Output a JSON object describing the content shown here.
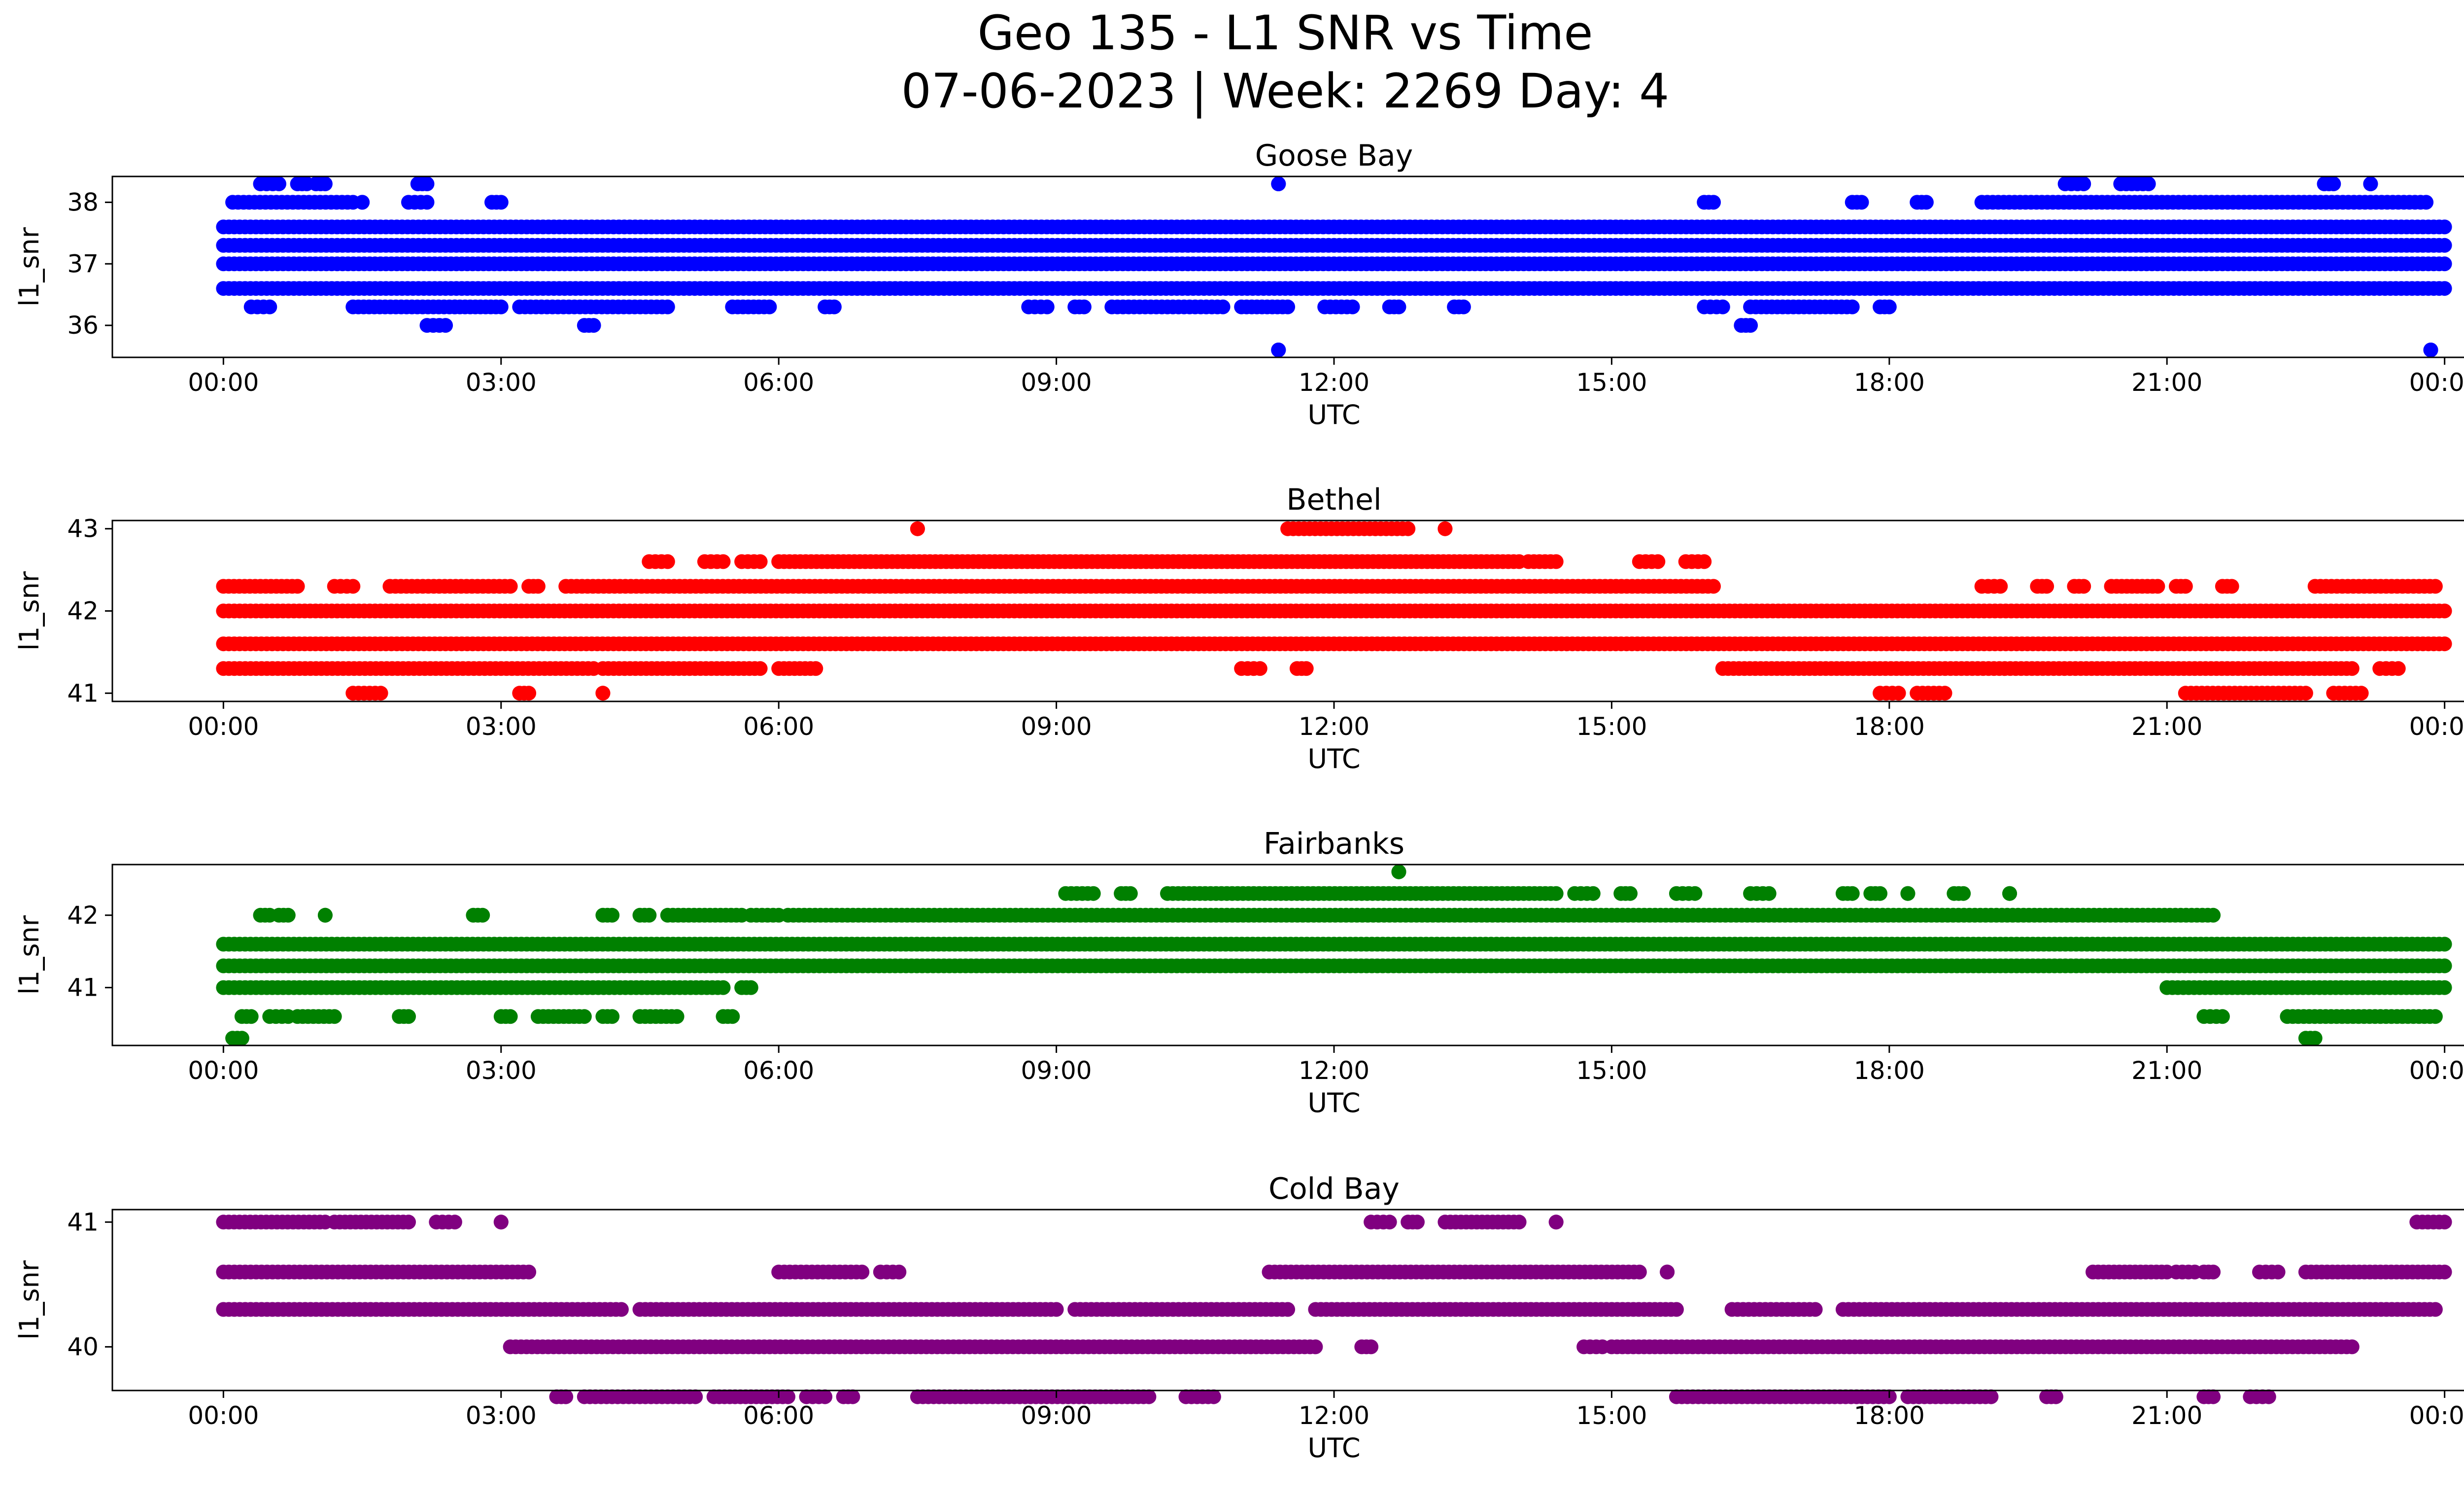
{
  "chart_data": {
    "type": "scatter",
    "title_line1": "Geo 135 - L1 SNR vs Time",
    "title_line2": "07-06-2023 | Week: 2269 Day: 4",
    "x_tick_labels": [
      "00:00",
      "03:00",
      "06:00",
      "09:00",
      "12:00",
      "15:00",
      "18:00",
      "21:00",
      "00:00"
    ],
    "x_tick_hours": [
      0,
      3,
      6,
      9,
      12,
      15,
      18,
      21,
      24
    ],
    "xlim_hours": [
      -1.2,
      25.2
    ],
    "panels": [
      {
        "title": "Goose Bay",
        "color": "#0000ff",
        "xlabel": "UTC",
        "ylabel": "l1_snr",
        "ylim": [
          35.48,
          38.42
        ],
        "yticks": [
          36,
          37,
          38
        ],
        "dense_levels": [
          36.6,
          37.0,
          37.3,
          37.6
        ],
        "bands": [
          {
            "y": 36.3,
            "ranges": [
              [
                0.3,
                0.5
              ],
              [
                1.4,
                2.5
              ],
              [
                2.5,
                3.0
              ],
              [
                3.2,
                4.8
              ],
              [
                5.5,
                5.9
              ],
              [
                6.5,
                6.6
              ],
              [
                8.7,
                8.9
              ],
              [
                9.2,
                9.3
              ],
              [
                9.6,
                10.8
              ],
              [
                11.0,
                11.5
              ],
              [
                11.9,
                12.2
              ],
              [
                12.6,
                12.7
              ],
              [
                13.3,
                13.4
              ],
              [
                16.0,
                16.2
              ],
              [
                16.5,
                17.6
              ],
              [
                17.9,
                18.0
              ]
            ]
          },
          {
            "y": 36.0,
            "ranges": [
              [
                2.2,
                2.4
              ],
              [
                3.9,
                4.0
              ],
              [
                16.4,
                16.5
              ]
            ]
          },
          {
            "y": 35.6,
            "ranges": [
              [
                11.4,
                11.4
              ],
              [
                23.85,
                23.85
              ]
            ]
          },
          {
            "y": 38.0,
            "ranges": [
              [
                0.1,
                1.4
              ],
              [
                1.5,
                1.5
              ],
              [
                2.0,
                2.2
              ],
              [
                2.9,
                3.0
              ],
              [
                16.0,
                16.1
              ],
              [
                17.6,
                17.7
              ],
              [
                18.3,
                18.4
              ],
              [
                19.0,
                22.6
              ],
              [
                22.6,
                23.8
              ]
            ]
          },
          {
            "y": 38.3,
            "ranges": [
              [
                0.4,
                0.6
              ],
              [
                0.8,
                0.9
              ],
              [
                1.0,
                1.1
              ],
              [
                2.1,
                2.2
              ],
              [
                11.4,
                11.4
              ],
              [
                19.9,
                20.1
              ],
              [
                20.5,
                20.8
              ],
              [
                22.7,
                22.8
              ],
              [
                23.2,
                23.2
              ]
            ]
          }
        ]
      },
      {
        "title": "Bethel",
        "color": "#ff0000",
        "xlabel": "UTC",
        "ylabel": "l1_snr",
        "ylim": [
          40.9,
          43.1
        ],
        "yticks": [
          41,
          42,
          43
        ],
        "dense_levels": [
          41.6,
          42.0
        ],
        "bands": [
          {
            "y": 42.3,
            "ranges": [
              [
                0.0,
                0.8
              ],
              [
                1.2,
                1.4
              ],
              [
                1.8,
                3.1
              ],
              [
                3.3,
                3.4
              ],
              [
                3.7,
                16.1
              ],
              [
                19.0,
                19.2
              ],
              [
                19.6,
                19.7
              ],
              [
                20.0,
                20.1
              ],
              [
                20.4,
                20.9
              ],
              [
                21.1,
                21.2
              ],
              [
                21.6,
                21.7
              ],
              [
                22.6,
                23.9
              ]
            ]
          },
          {
            "y": 41.3,
            "ranges": [
              [
                0.0,
                4.0
              ],
              [
                4.1,
                5.8
              ],
              [
                6.0,
                6.4
              ],
              [
                11.0,
                11.2
              ],
              [
                11.6,
                11.7
              ],
              [
                16.2,
                23.0
              ],
              [
                23.3,
                23.5
              ]
            ]
          },
          {
            "y": 42.6,
            "ranges": [
              [
                4.6,
                4.8
              ],
              [
                5.2,
                5.4
              ],
              [
                5.6,
                5.8
              ],
              [
                6.0,
                14.0
              ],
              [
                14.1,
                14.4
              ],
              [
                15.3,
                15.5
              ],
              [
                15.8,
                16.0
              ]
            ]
          },
          {
            "y": 41.0,
            "ranges": [
              [
                1.4,
                1.7
              ],
              [
                3.2,
                3.3
              ],
              [
                4.1,
                4.1
              ],
              [
                17.9,
                18.1
              ],
              [
                18.3,
                18.6
              ],
              [
                21.2,
                22.5
              ],
              [
                22.8,
                23.1
              ]
            ]
          },
          {
            "y": 43.0,
            "ranges": [
              [
                7.5,
                7.5
              ],
              [
                11.5,
                12.8
              ],
              [
                13.2,
                13.2
              ]
            ]
          }
        ]
      },
      {
        "title": "Fairbanks",
        "color": "#008000",
        "xlabel": "UTC",
        "ylabel": "l1_snr",
        "ylim": [
          40.2,
          42.7
        ],
        "yticks": [
          41,
          42
        ],
        "dense_levels": [
          41.3,
          41.6
        ],
        "bands": [
          {
            "y": 42.0,
            "ranges": [
              [
                0.4,
                0.5
              ],
              [
                0.6,
                0.7
              ],
              [
                1.1,
                1.1
              ],
              [
                2.7,
                2.8
              ],
              [
                4.1,
                4.2
              ],
              [
                4.5,
                4.6
              ],
              [
                4.8,
                5.6
              ],
              [
                5.7,
                6.0
              ],
              [
                6.1,
                21.5
              ]
            ]
          },
          {
            "y": 41.0,
            "ranges": [
              [
                0.0,
                5.4
              ],
              [
                5.6,
                5.7
              ],
              [
                21.0,
                24.0
              ]
            ]
          },
          {
            "y": 40.6,
            "ranges": [
              [
                0.2,
                0.3
              ],
              [
                0.5,
                0.7
              ],
              [
                0.8,
                1.2
              ],
              [
                1.9,
                2.0
              ],
              [
                3.0,
                3.1
              ],
              [
                3.4,
                3.9
              ],
              [
                4.1,
                4.2
              ],
              [
                4.5,
                4.9
              ],
              [
                5.4,
                5.5
              ],
              [
                21.4,
                21.6
              ],
              [
                22.3,
                23.9
              ]
            ]
          },
          {
            "y": 42.3,
            "ranges": [
              [
                9.1,
                9.4
              ],
              [
                9.7,
                9.8
              ],
              [
                10.2,
                14.4
              ],
              [
                14.6,
                14.8
              ],
              [
                15.1,
                15.2
              ],
              [
                15.7,
                15.9
              ],
              [
                16.5,
                16.7
              ],
              [
                17.5,
                17.6
              ],
              [
                17.8,
                17.9
              ],
              [
                18.2,
                18.2
              ],
              [
                18.7,
                18.8
              ],
              [
                19.3,
                19.3
              ]
            ]
          },
          {
            "y": 40.3,
            "ranges": [
              [
                0.1,
                0.2
              ],
              [
                22.5,
                22.6
              ]
            ]
          },
          {
            "y": 42.6,
            "ranges": [
              [
                12.7,
                12.7
              ]
            ]
          }
        ]
      },
      {
        "title": "Cold Bay",
        "color": "#800080",
        "xlabel": "UTC",
        "ylabel": "l1_snr",
        "ylim": [
          39.65,
          41.1
        ],
        "yticks": [
          40,
          41
        ],
        "dense_levels": [],
        "bands": [
          {
            "y": 40.3,
            "ranges": [
              [
                0.0,
                4.3
              ],
              [
                4.5,
                9.0
              ],
              [
                9.2,
                11.5
              ],
              [
                11.8,
                15.7
              ],
              [
                16.3,
                17.2
              ],
              [
                17.5,
                23.9
              ]
            ]
          },
          {
            "y": 40.6,
            "ranges": [
              [
                0.0,
                3.3
              ],
              [
                6.0,
                6.9
              ],
              [
                7.1,
                7.3
              ],
              [
                11.3,
                15.3
              ],
              [
                15.6,
                15.6
              ],
              [
                20.2,
                21.0
              ],
              [
                21.1,
                21.3
              ],
              [
                21.4,
                21.5
              ],
              [
                22.0,
                22.2
              ],
              [
                22.5,
                24.0
              ]
            ]
          },
          {
            "y": 41.0,
            "ranges": [
              [
                0.0,
                1.1
              ],
              [
                1.2,
                2.0
              ],
              [
                2.3,
                2.5
              ],
              [
                3.0,
                3.0
              ],
              [
                12.4,
                12.6
              ],
              [
                12.8,
                12.9
              ],
              [
                13.2,
                14.0
              ],
              [
                14.4,
                14.4
              ],
              [
                23.7,
                24.0
              ]
            ]
          },
          {
            "y": 40.0,
            "ranges": [
              [
                3.1,
                11.8
              ],
              [
                12.3,
                12.4
              ],
              [
                14.7,
                14.9
              ],
              [
                15.0,
                23.0
              ]
            ]
          },
          {
            "y": 39.6,
            "ranges": [
              [
                3.6,
                3.7
              ],
              [
                3.9,
                5.1
              ],
              [
                5.3,
                6.1
              ],
              [
                6.3,
                6.5
              ],
              [
                6.7,
                6.8
              ],
              [
                7.5,
                10.0
              ],
              [
                10.4,
                10.7
              ],
              [
                15.7,
                18.0
              ],
              [
                18.2,
                19.1
              ],
              [
                19.7,
                19.8
              ],
              [
                21.4,
                21.5
              ],
              [
                21.9,
                22.1
              ]
            ]
          }
        ]
      }
    ]
  }
}
